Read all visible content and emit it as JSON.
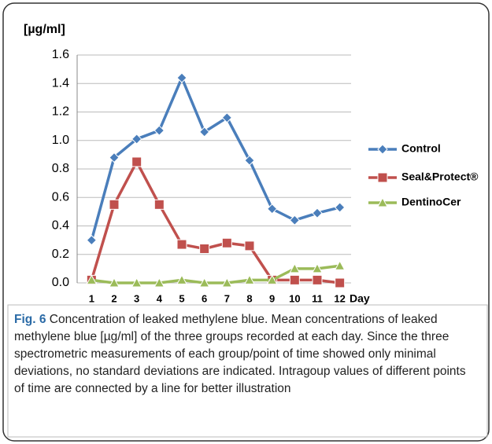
{
  "chart_data": {
    "type": "line",
    "y_label": "[µg/ml]",
    "x_label": "Day",
    "categories": [
      "1",
      "2",
      "3",
      "4",
      "5",
      "6",
      "7",
      "8",
      "9",
      "10",
      "11",
      "12"
    ],
    "series": [
      {
        "name": "Control",
        "color": "#4a7ebb",
        "marker": "diamond",
        "values": [
          0.3,
          0.88,
          1.01,
          1.07,
          1.44,
          1.06,
          1.16,
          0.86,
          0.52,
          0.44,
          0.49,
          0.53
        ]
      },
      {
        "name": "Seal&Protect®",
        "color": "#c0504d",
        "marker": "square",
        "values": [
          0.02,
          0.55,
          0.85,
          0.55,
          0.27,
          0.24,
          0.28,
          0.26,
          0.02,
          0.02,
          0.02,
          0.0
        ]
      },
      {
        "name": "DentinoCer",
        "color": "#9bbb59",
        "marker": "triangle",
        "values": [
          0.02,
          0.0,
          0.0,
          0.0,
          0.02,
          0.0,
          0.0,
          0.02,
          0.02,
          0.1,
          0.1,
          0.12
        ]
      }
    ],
    "ylim": [
      0,
      1.6
    ],
    "yticks": [
      {
        "value": 0,
        "label": "0.0"
      },
      0.2,
      0.4,
      0.6,
      0.8,
      {
        "value": 1,
        "label": "1.0"
      },
      1.2,
      1.4,
      1.6
    ],
    "grid": true,
    "legend": "right"
  },
  "caption": {
    "label": "Fig. 6",
    "text": "Concentration of leaked methylene blue. Mean concentrations of leaked methylene blue [µg/ml] of the three groups recorded at each day. Since the three spectrometric measurements of each group/point of time showed only minimal deviations, no standard deviations are indicated. Intragoup values of different points of time are connected by a line for better illustration"
  }
}
